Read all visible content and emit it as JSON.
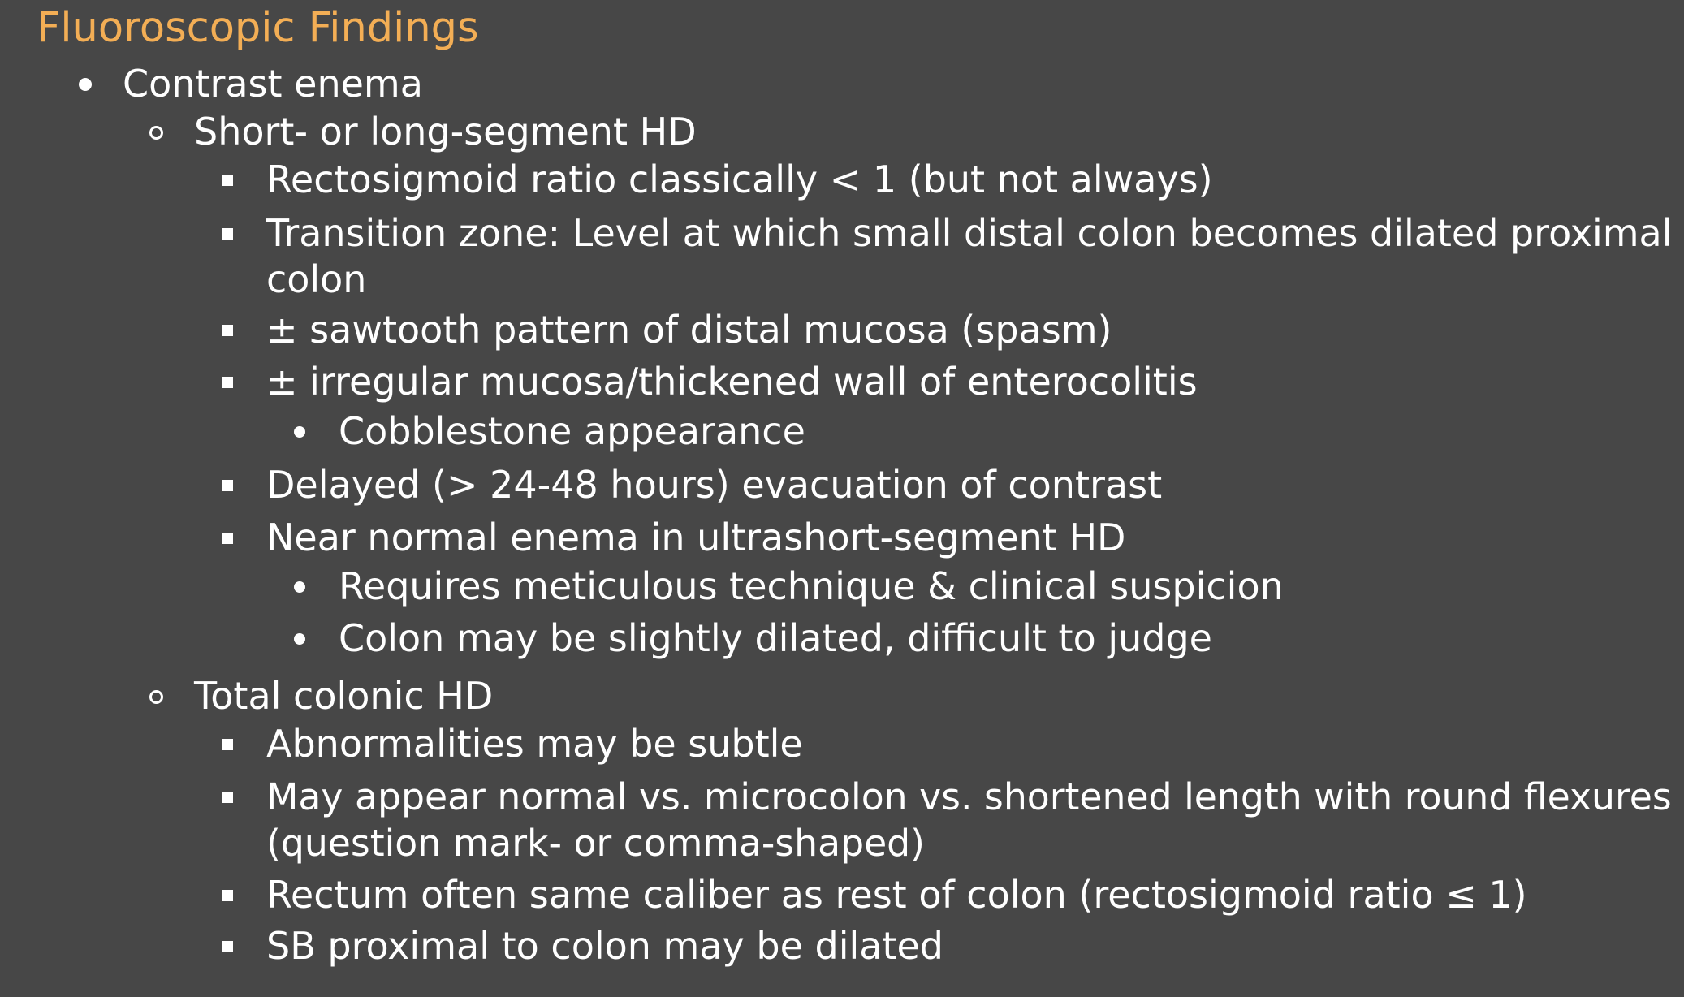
{
  "slide": {
    "title": "Fluoroscopic Findings",
    "items": [
      {
        "level": 1,
        "text": "Contrast enema"
      },
      {
        "level": 2,
        "text": "Short- or long-segment HD"
      },
      {
        "level": 3,
        "text": "Rectosigmoid ratio classically < 1 (but not always)"
      },
      {
        "level": 3,
        "lines": [
          "Transition zone: Level at which small distal colon becomes dilated proximal",
          "colon"
        ]
      },
      {
        "level": 3,
        "text": "± sawtooth pattern of distal mucosa (spasm)"
      },
      {
        "level": 3,
        "text": "± irregular mucosa/thickened wall of enterocolitis"
      },
      {
        "level": 4,
        "text": "Cobblestone appearance"
      },
      {
        "level": 3,
        "text": "Delayed (> 24-48 hours) evacuation of contrast"
      },
      {
        "level": 3,
        "text": "Near normal enema in ultrashort-segment HD"
      },
      {
        "level": 4,
        "text": "Requires meticulous technique & clinical suspicion"
      },
      {
        "level": 4,
        "text": "Colon may be slightly dilated, difficult to judge"
      },
      {
        "level": 2,
        "text": "Total colonic HD"
      },
      {
        "level": 3,
        "text": "Abnormalities may be subtle"
      },
      {
        "level": 3,
        "lines": [
          "May appear normal vs. microcolon vs. shortened length with round flexures",
          "(question mark- or comma-shaped)"
        ]
      },
      {
        "level": 3,
        "text": "Rectum often same caliber as rest of colon (rectosigmoid ratio ≤ 1)"
      },
      {
        "level": 3,
        "text": "SB proximal to colon may be dilated"
      }
    ]
  }
}
